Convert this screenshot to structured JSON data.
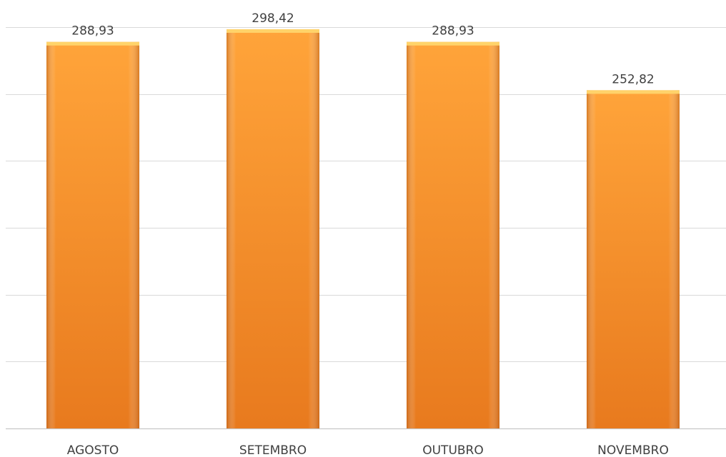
{
  "chart_data": {
    "type": "bar",
    "categories": [
      "AGOSTO",
      "SETEMBRO",
      "OUTUBRO",
      "NOVEMBRO"
    ],
    "values": [
      288.93,
      298.42,
      288.93,
      252.82
    ],
    "data_labels": [
      "288,93",
      "298,42",
      "288,93",
      "252,82"
    ],
    "title": "",
    "xlabel": "",
    "ylabel": "",
    "ylim": [
      0,
      300
    ],
    "grid": true,
    "legend": "none",
    "colors": {
      "bar_light": "#ffa43a",
      "bar_mid": "#f7902a",
      "bar_dark": "#d8701a",
      "bar_top": "#ffd36a"
    }
  }
}
